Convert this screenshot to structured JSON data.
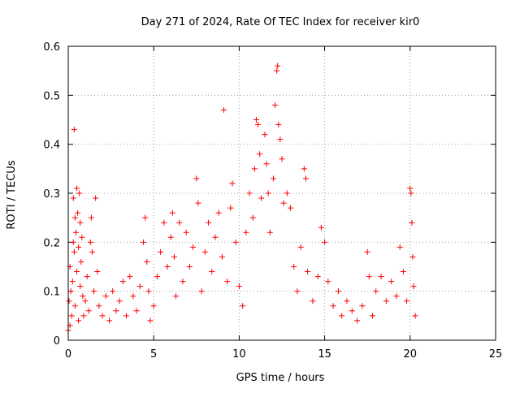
{
  "chart_data": {
    "type": "scatter",
    "title": "Day 271 of 2024, Rate Of TEC Index for receiver kir0",
    "xlabel": "GPS time / hours",
    "ylabel": "ROTI / TECUs",
    "xlim": [
      0,
      25
    ],
    "ylim": [
      0,
      0.6
    ],
    "xticks": [
      "0",
      "5",
      "10",
      "15",
      "20",
      "25"
    ],
    "yticks": [
      "0",
      "0.1",
      "0.2",
      "0.3",
      "0.4",
      "0.5",
      "0.6"
    ],
    "grid": true,
    "legend": "none",
    "marker": "+",
    "color": "#ff0000",
    "series": [
      {
        "points": [
          [
            0.0,
            0.02
          ],
          [
            0.05,
            0.08
          ],
          [
            0.1,
            0.15
          ],
          [
            0.1,
            0.03
          ],
          [
            0.15,
            0.1
          ],
          [
            0.2,
            0.05
          ],
          [
            0.25,
            0.12
          ],
          [
            0.3,
            0.2
          ],
          [
            0.3,
            0.29
          ],
          [
            0.35,
            0.18
          ],
          [
            0.35,
            0.43
          ],
          [
            0.4,
            0.25
          ],
          [
            0.4,
            0.07
          ],
          [
            0.45,
            0.22
          ],
          [
            0.5,
            0.31
          ],
          [
            0.5,
            0.14
          ],
          [
            0.55,
            0.26
          ],
          [
            0.6,
            0.19
          ],
          [
            0.6,
            0.04
          ],
          [
            0.65,
            0.3
          ],
          [
            0.7,
            0.24
          ],
          [
            0.7,
            0.11
          ],
          [
            0.75,
            0.16
          ],
          [
            0.8,
            0.21
          ],
          [
            0.85,
            0.09
          ],
          [
            0.9,
            0.05
          ],
          [
            1.0,
            0.08
          ],
          [
            1.1,
            0.13
          ],
          [
            1.2,
            0.06
          ],
          [
            1.3,
            0.2
          ],
          [
            1.35,
            0.25
          ],
          [
            1.4,
            0.18
          ],
          [
            1.5,
            0.1
          ],
          [
            1.6,
            0.29
          ],
          [
            1.7,
            0.14
          ],
          [
            1.8,
            0.07
          ],
          [
            2.0,
            0.05
          ],
          [
            2.2,
            0.09
          ],
          [
            2.4,
            0.04
          ],
          [
            2.6,
            0.1
          ],
          [
            2.8,
            0.06
          ],
          [
            3.0,
            0.08
          ],
          [
            3.2,
            0.12
          ],
          [
            3.4,
            0.05
          ],
          [
            3.6,
            0.13
          ],
          [
            3.8,
            0.09
          ],
          [
            4.0,
            0.06
          ],
          [
            4.2,
            0.11
          ],
          [
            4.4,
            0.2
          ],
          [
            4.5,
            0.25
          ],
          [
            4.6,
            0.16
          ],
          [
            4.7,
            0.1
          ],
          [
            4.8,
            0.04
          ],
          [
            5.0,
            0.07
          ],
          [
            5.2,
            0.13
          ],
          [
            5.4,
            0.18
          ],
          [
            5.6,
            0.24
          ],
          [
            5.8,
            0.15
          ],
          [
            6.0,
            0.21
          ],
          [
            6.1,
            0.26
          ],
          [
            6.2,
            0.17
          ],
          [
            6.3,
            0.09
          ],
          [
            6.5,
            0.24
          ],
          [
            6.7,
            0.12
          ],
          [
            6.9,
            0.22
          ],
          [
            7.1,
            0.15
          ],
          [
            7.3,
            0.19
          ],
          [
            7.5,
            0.33
          ],
          [
            7.6,
            0.28
          ],
          [
            7.8,
            0.1
          ],
          [
            8.0,
            0.18
          ],
          [
            8.2,
            0.24
          ],
          [
            8.4,
            0.14
          ],
          [
            8.6,
            0.21
          ],
          [
            8.8,
            0.26
          ],
          [
            9.0,
            0.17
          ],
          [
            9.1,
            0.47
          ],
          [
            9.3,
            0.12
          ],
          [
            9.5,
            0.27
          ],
          [
            9.6,
            0.32
          ],
          [
            9.8,
            0.2
          ],
          [
            10.0,
            0.11
          ],
          [
            10.2,
            0.07
          ],
          [
            10.4,
            0.22
          ],
          [
            10.6,
            0.3
          ],
          [
            10.8,
            0.25
          ],
          [
            10.9,
            0.35
          ],
          [
            11.0,
            0.45
          ],
          [
            11.1,
            0.44
          ],
          [
            11.2,
            0.38
          ],
          [
            11.3,
            0.29
          ],
          [
            11.5,
            0.42
          ],
          [
            11.6,
            0.36
          ],
          [
            11.7,
            0.3
          ],
          [
            11.8,
            0.22
          ],
          [
            12.0,
            0.33
          ],
          [
            12.1,
            0.48
          ],
          [
            12.2,
            0.55
          ],
          [
            12.25,
            0.56
          ],
          [
            12.3,
            0.44
          ],
          [
            12.4,
            0.41
          ],
          [
            12.5,
            0.37
          ],
          [
            12.6,
            0.28
          ],
          [
            12.8,
            0.3
          ],
          [
            13.0,
            0.27
          ],
          [
            13.2,
            0.15
          ],
          [
            13.4,
            0.1
          ],
          [
            13.6,
            0.19
          ],
          [
            13.8,
            0.35
          ],
          [
            13.9,
            0.33
          ],
          [
            14.0,
            0.14
          ],
          [
            14.3,
            0.08
          ],
          [
            14.6,
            0.13
          ],
          [
            14.8,
            0.23
          ],
          [
            15.0,
            0.2
          ],
          [
            15.2,
            0.12
          ],
          [
            15.5,
            0.07
          ],
          [
            15.8,
            0.1
          ],
          [
            16.0,
            0.05
          ],
          [
            16.3,
            0.08
          ],
          [
            16.6,
            0.06
          ],
          [
            16.9,
            0.04
          ],
          [
            17.2,
            0.07
          ],
          [
            17.5,
            0.18
          ],
          [
            17.6,
            0.13
          ],
          [
            17.8,
            0.05
          ],
          [
            18.0,
            0.1
          ],
          [
            18.3,
            0.13
          ],
          [
            18.6,
            0.08
          ],
          [
            18.9,
            0.12
          ],
          [
            19.2,
            0.09
          ],
          [
            19.4,
            0.19
          ],
          [
            19.6,
            0.14
          ],
          [
            19.8,
            0.08
          ],
          [
            20.0,
            0.31
          ],
          [
            20.05,
            0.3
          ],
          [
            20.1,
            0.24
          ],
          [
            20.15,
            0.17
          ],
          [
            20.2,
            0.11
          ],
          [
            20.3,
            0.05
          ]
        ]
      }
    ]
  }
}
